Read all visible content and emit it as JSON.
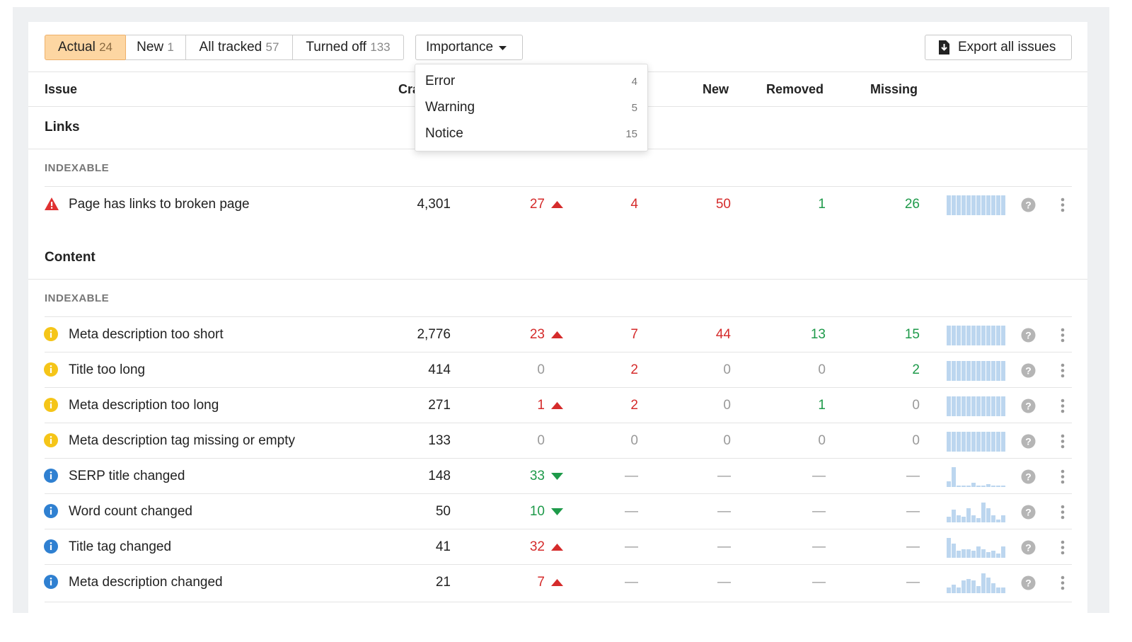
{
  "tabs": [
    {
      "label": "Actual",
      "count": 24
    },
    {
      "label": "New",
      "count": 1
    },
    {
      "label": "All tracked",
      "count": 57
    },
    {
      "label": "Turned off",
      "count": 133
    }
  ],
  "importance": {
    "label": "Importance",
    "options": [
      {
        "label": "Error",
        "count": 4
      },
      {
        "label": "Warning",
        "count": 5
      },
      {
        "label": "Notice",
        "count": 15
      }
    ]
  },
  "export": "Export all issues",
  "columns": {
    "issue": "Issue",
    "crawled": "Crawled",
    "new": "New",
    "removed": "Removed",
    "missing": "Missing"
  },
  "sections": [
    {
      "title": "Links",
      "groups": [
        {
          "title": "INDEXABLE",
          "rows": [
            {
              "severity": "error",
              "issue": "Page has links to broken page",
              "crawled": "4,301",
              "change": 27,
              "trend": "up",
              "added": 4,
              "new": 50,
              "removed": 1,
              "missing": 26
            }
          ]
        }
      ]
    },
    {
      "title": "Content",
      "groups": [
        {
          "title": "INDEXABLE",
          "rows": [
            {
              "severity": "warning",
              "issue": "Meta description too short",
              "crawled": "2,776",
              "change": 23,
              "trend": "up",
              "added": 7,
              "new": 44,
              "removed": 13,
              "missing": 15
            },
            {
              "severity": "warning",
              "issue": "Title too long",
              "crawled": 414,
              "change": 0,
              "added": 2,
              "new": 0,
              "removed": 0,
              "missing": 2
            },
            {
              "severity": "warning",
              "issue": "Meta description too long",
              "crawled": 271,
              "change": 1,
              "trend": "up",
              "added": 2,
              "new": 0,
              "removed": 1,
              "missing": 0
            },
            {
              "severity": "warning",
              "issue": "Meta description tag missing or empty",
              "crawled": 133,
              "change": 0,
              "added": 0,
              "new": 0,
              "removed": 0,
              "missing": 0
            },
            {
              "severity": "notice",
              "issue": "SERP title changed",
              "crawled": 148,
              "change": 33,
              "trend": "down",
              "added": "—",
              "new": "—",
              "removed": "—",
              "missing": "—"
            },
            {
              "severity": "notice",
              "issue": "Word count changed",
              "crawled": 50,
              "change": 10,
              "trend": "down",
              "added": "—",
              "new": "—",
              "removed": "—",
              "missing": "—"
            },
            {
              "severity": "notice",
              "issue": "Title tag changed",
              "crawled": 41,
              "change": 32,
              "trend": "up",
              "added": "—",
              "new": "—",
              "removed": "—",
              "missing": "—"
            },
            {
              "severity": "notice",
              "issue": "Meta description changed",
              "crawled": 21,
              "change": 7,
              "trend": "up",
              "added": "—",
              "new": "—",
              "removed": "—",
              "missing": "—"
            }
          ]
        }
      ]
    }
  ]
}
